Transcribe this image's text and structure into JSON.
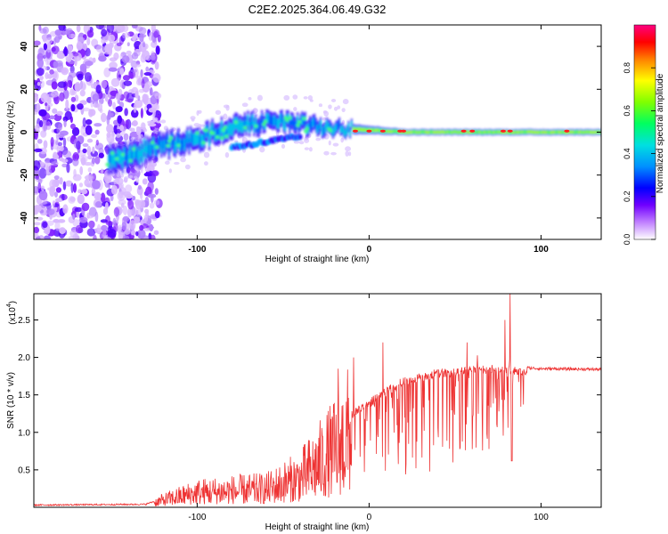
{
  "title": "C2E2.2025.364.06.49.G32",
  "chart_data": [
    {
      "type": "heatmap",
      "name": "spectrogram",
      "xlabel": "Height of straight line (km)",
      "ylabel": "Frequency (Hz)",
      "xlim": [
        -195,
        135
      ],
      "ylim": [
        -50,
        50
      ],
      "xticks": [
        -100,
        0,
        100
      ],
      "xtick_labels": [
        "-100",
        "0",
        "100"
      ],
      "yticks": [
        -40,
        -20,
        0,
        20,
        40
      ],
      "ytick_labels": [
        "-40",
        "-20",
        "0",
        "20",
        "40"
      ],
      "colorbar": {
        "label": "Normalized spectral amplitude",
        "range": [
          0,
          1
        ],
        "ticks": [
          0,
          0.2,
          0.4,
          0.6,
          0.8
        ],
        "tick_labels": [
          "0.0",
          "0.2",
          "0.4",
          "0.6",
          "0.8"
        ],
        "colormap": [
          "#ffffff",
          "#8000ff",
          "#0000ff",
          "#00c0ff",
          "#00ff80",
          "#80ff00",
          "#ffff00",
          "#ff8000",
          "#ff0000",
          "#ff00a0"
        ]
      },
      "ridge": {
        "description_x": [
          -150,
          -120,
          -100,
          -80,
          -60,
          -40,
          -20,
          0,
          20,
          60,
          100,
          130
        ],
        "center_hz": [
          -13,
          -6,
          -3,
          2,
          5,
          4,
          2,
          1,
          0,
          0,
          0,
          0
        ],
        "halfwidth_hz": [
          6,
          5,
          5,
          5,
          4,
          4,
          3,
          2,
          1.5,
          1.5,
          1.5,
          1.5
        ]
      }
    },
    {
      "type": "line",
      "name": "snr",
      "color": "#ee3333",
      "xlabel": "Height of straight line (km)",
      "ylabel": "SNR (10 * v/v)",
      "yscale_label": "(x10",
      "yscale_exponent": "4",
      "xlim": [
        -195,
        135
      ],
      "ylim": [
        0,
        2.85
      ],
      "xticks": [
        -100,
        0,
        100
      ],
      "xtick_labels": [
        "-100",
        "0",
        "100"
      ],
      "yticks": [
        0.5,
        1.0,
        1.5,
        2.0,
        2.5
      ],
      "ytick_labels": [
        "0.5",
        "1.0",
        "1.5",
        "2.0",
        "2.5"
      ],
      "envelope_x": [
        -195,
        -130,
        -120,
        -100,
        -80,
        -60,
        -40,
        -20,
        -10,
        0,
        10,
        20,
        40,
        60,
        80,
        100,
        135
      ],
      "envelope_y": [
        0.03,
        0.04,
        0.12,
        0.25,
        0.28,
        0.3,
        0.5,
        0.95,
        1.3,
        1.45,
        1.6,
        1.75,
        1.85,
        1.88,
        1.88,
        1.85,
        1.84
      ],
      "spike_x": [
        -18,
        -9,
        8,
        57,
        79,
        82
      ],
      "spike_y": [
        1.85,
        2.0,
        2.2,
        2.2,
        2.5,
        2.85
      ]
    }
  ]
}
